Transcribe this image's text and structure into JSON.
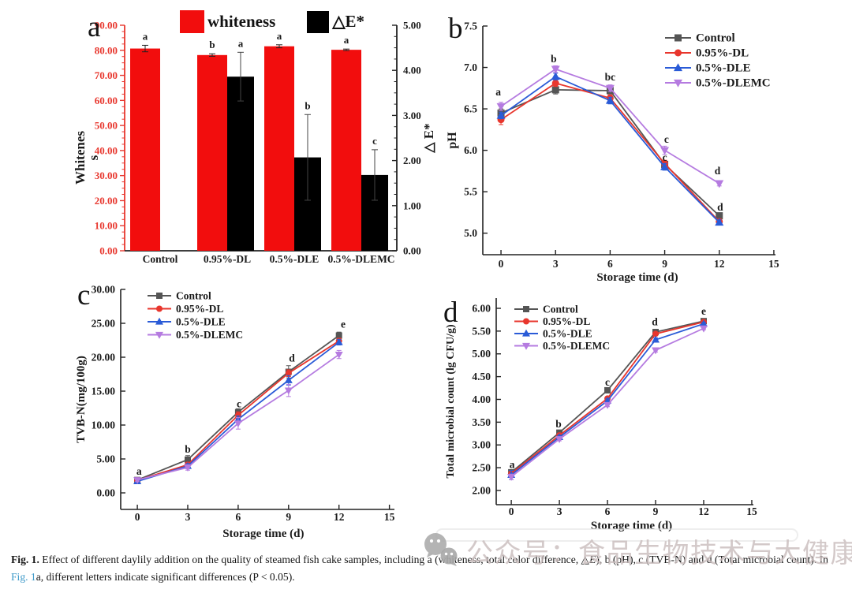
{
  "figure": {
    "panels": [
      {
        "letter": "a"
      },
      {
        "letter": "b"
      },
      {
        "letter": "c"
      },
      {
        "letter": "d"
      }
    ]
  },
  "colors": {
    "bar_red": "#f20d0d",
    "bar_black": "#000000",
    "axis_red": "#e8382f",
    "axis_black": "#222222",
    "control_gray": "#555555",
    "dl_red": "#e8362d",
    "dle_blue": "#2a5bd7",
    "dlemc_purple": "#b57be0",
    "link_blue": "#3f9ac9",
    "watermark_gray": "#c9bdbd"
  },
  "watermark": {
    "icon": "wechat-faces-icon",
    "text": "公众号：食品生物技术与大健康"
  },
  "caption": {
    "bold_label": "Fig. 1.",
    "segments": [
      {
        "text": " Effect of different daylily addition on the quality of steamed fish cake samples, including a (whiteness, total color difference, "
      },
      {
        "text": "△"
      },
      {
        "text": "E",
        "style": "italic"
      },
      {
        "text": "), b (pH), c (TVB-N) and d (Total microbial count). In "
      },
      {
        "text": "Fig. 1",
        "style": "link"
      },
      {
        "text": "a, different letters indicate significant differences (P < 0.05)."
      }
    ]
  },
  "chart_data": [
    {
      "id": "a",
      "type": "bar",
      "categories": [
        "Control",
        "0.95%-DL",
        "0.5%-DLE",
        "0.5%-DLEMC"
      ],
      "left_axis": {
        "label": "Whiteness",
        "label_lines": [
          "Whitenes",
          "s"
        ],
        "min": 0,
        "max": 90,
        "ticks": [
          "0.00",
          "10.00",
          "20.00",
          "30.00",
          "40.00",
          "50.00",
          "60.00",
          "70.00",
          "80.00",
          "90.00"
        ]
      },
      "right_axis": {
        "label": "△ E*",
        "min": 0,
        "max": 5,
        "ticks": [
          "0.00",
          "1.00",
          "2.00",
          "3.00",
          "4.00",
          "5.00"
        ]
      },
      "series": [
        {
          "name": "whiteness",
          "axis": "left",
          "color_key": "bar_red",
          "values": [
            80.7,
            78.1,
            81.6,
            80.2
          ],
          "errors": [
            1.3,
            0.5,
            0.6,
            0.3
          ],
          "letters": [
            "a",
            "b",
            "a",
            "a"
          ]
        },
        {
          "name": "△E*",
          "axis": "right",
          "color_key": "bar_black",
          "values": [
            null,
            3.86,
            2.07,
            1.68
          ],
          "errors": [
            null,
            0.54,
            0.95,
            0.56
          ],
          "letters": [
            null,
            "a",
            "b",
            "c"
          ]
        }
      ]
    },
    {
      "id": "b",
      "type": "line",
      "xlabel": "Storage time (d)",
      "ylabel": "pH",
      "x": [
        0,
        3,
        6,
        9,
        12
      ],
      "x_ticks": [
        0,
        3,
        6,
        9,
        12,
        15
      ],
      "y_ticks": [
        "5.0",
        "5.5",
        "6.0",
        "6.5",
        "7.0",
        "7.5"
      ],
      "xlim_draw": [
        -1,
        15.09
      ],
      "ylim_draw": [
        4.74,
        7.5
      ],
      "legend_pos": "top-right",
      "series": [
        {
          "name": "Control",
          "marker": "square",
          "color_key": "control_gray",
          "values": [
            6.45,
            6.73,
            6.72,
            5.83,
            5.21
          ],
          "errors": [
            0.05,
            0.05,
            0.04,
            0.04,
            0.03
          ]
        },
        {
          "name": "0.95%-DL",
          "marker": "circle",
          "color_key": "dl_red",
          "values": [
            6.37,
            6.81,
            6.63,
            5.84,
            5.14
          ],
          "errors": [
            0.06,
            0.04,
            0.04,
            0.04,
            0.03
          ]
        },
        {
          "name": "0.5%-DLE",
          "marker": "triangle-up",
          "color_key": "dle_blue",
          "values": [
            6.42,
            6.89,
            6.6,
            5.8,
            5.13
          ],
          "errors": [
            0.04,
            0.04,
            0.04,
            0.04,
            0.03
          ]
        },
        {
          "name": "0.5%-DLEMC",
          "marker": "triangle-down",
          "color_key": "dlemc_purple",
          "values": [
            6.53,
            6.98,
            6.75,
            6.0,
            5.6
          ],
          "errors": [
            0.05,
            0.04,
            0.04,
            0.05,
            0.03
          ]
        }
      ],
      "letters": [
        {
          "text": "a",
          "x": -0.15,
          "y": 6.7
        },
        {
          "text": "b",
          "x": 2.9,
          "y": 7.1
        },
        {
          "text": "bc",
          "x": 6.0,
          "y": 6.88
        },
        {
          "text": "c",
          "x": 9.1,
          "y": 6.13
        },
        {
          "text": "c",
          "x": 9.0,
          "y": 5.91
        },
        {
          "text": "d",
          "x": 11.9,
          "y": 5.75
        },
        {
          "text": "d",
          "x": 12.05,
          "y": 5.31
        }
      ]
    },
    {
      "id": "c",
      "type": "line",
      "xlabel": "Storage time (d)",
      "ylabel": "TVB-N(mg/100g)",
      "x": [
        0,
        3,
        6,
        9,
        12
      ],
      "x_ticks": [
        0,
        3,
        6,
        9,
        12,
        15
      ],
      "y_ticks": [
        "0.00",
        "5.00",
        "10.00",
        "15.00",
        "20.00",
        "25.00",
        "30.00"
      ],
      "xlim_draw": [
        -0.99,
        15.3
      ],
      "ylim_draw": [
        -2.44,
        30
      ],
      "legend_pos": "top-left",
      "series": [
        {
          "name": "Control",
          "marker": "square",
          "color_key": "control_gray",
          "values": [
            1.9,
            4.9,
            11.9,
            17.85,
            23.2
          ],
          "errors": [
            0.25,
            0.6,
            0.5,
            0.9,
            0.5
          ]
        },
        {
          "name": "0.95%-DL",
          "marker": "circle",
          "color_key": "dl_red",
          "values": [
            1.85,
            4.15,
            11.45,
            17.65,
            22.4
          ],
          "errors": [
            0.25,
            0.35,
            0.5,
            0.5,
            0.4
          ]
        },
        {
          "name": "0.5%-DLE",
          "marker": "triangle-up",
          "color_key": "dle_blue",
          "values": [
            1.7,
            3.95,
            10.85,
            16.6,
            22.2
          ],
          "errors": [
            0.25,
            0.35,
            0.5,
            0.7,
            0.4
          ]
        },
        {
          "name": "0.5%-DLEMC",
          "marker": "triangle-down",
          "color_key": "dlemc_purple",
          "values": [
            1.9,
            3.75,
            10.25,
            15.1,
            20.4
          ],
          "errors": [
            0.25,
            0.4,
            0.85,
            0.9,
            0.6
          ]
        }
      ],
      "letters": [
        {
          "text": "a",
          "x": 0.1,
          "y": 3.15
        },
        {
          "text": "b",
          "x": 3.0,
          "y": 6.4
        },
        {
          "text": "c",
          "x": 6.05,
          "y": 13.1
        },
        {
          "text": "d",
          "x": 9.2,
          "y": 19.8
        },
        {
          "text": "e",
          "x": 12.25,
          "y": 24.8
        }
      ]
    },
    {
      "id": "d",
      "type": "line",
      "xlabel": "Storage time (d)",
      "ylabel": "Total microbial count (lg CFU/g)",
      "x": [
        0,
        3,
        6,
        9,
        12
      ],
      "x_ticks": [
        0,
        3,
        6,
        9,
        12,
        15
      ],
      "y_ticks": [
        "2.00",
        "2.50",
        "3.00",
        "3.50",
        "4.00",
        "4.50",
        "5.00",
        "5.50",
        "6.00"
      ],
      "xlim_draw": [
        -0.94,
        15.1
      ],
      "ylim_draw": [
        1.688,
        6.225
      ],
      "legend_pos": "top-left",
      "series": [
        {
          "name": "Control",
          "marker": "square",
          "color_key": "control_gray",
          "values": [
            2.4,
            3.27,
            4.2,
            5.48,
            5.72
          ],
          "errors": [
            0.05,
            0.04,
            0.04,
            0.04,
            0.03
          ]
        },
        {
          "name": "0.95%-DL",
          "marker": "circle",
          "color_key": "dl_red",
          "values": [
            2.37,
            3.21,
            4.02,
            5.44,
            5.7
          ],
          "errors": [
            0.04,
            0.04,
            0.04,
            0.03,
            0.03
          ]
        },
        {
          "name": "0.5%-DLE",
          "marker": "triangle-up",
          "color_key": "dle_blue",
          "values": [
            2.34,
            3.17,
            3.97,
            5.31,
            5.66
          ],
          "errors": [
            0.1,
            0.04,
            0.04,
            0.04,
            0.03
          ]
        },
        {
          "name": "0.5%-DLEMC",
          "marker": "triangle-down",
          "color_key": "dlemc_purple",
          "values": [
            2.3,
            3.13,
            3.88,
            5.08,
            5.56
          ],
          "errors": [
            0.06,
            0.04,
            0.04,
            0.04,
            0.03
          ]
        }
      ],
      "letters": [
        {
          "text": "a",
          "x": 0.05,
          "y": 2.56
        },
        {
          "text": "b",
          "x": 2.95,
          "y": 3.45
        },
        {
          "text": "c",
          "x": 6.0,
          "y": 4.37
        },
        {
          "text": "d",
          "x": 8.95,
          "y": 5.7
        },
        {
          "text": "e",
          "x": 12.0,
          "y": 5.93
        }
      ]
    }
  ]
}
